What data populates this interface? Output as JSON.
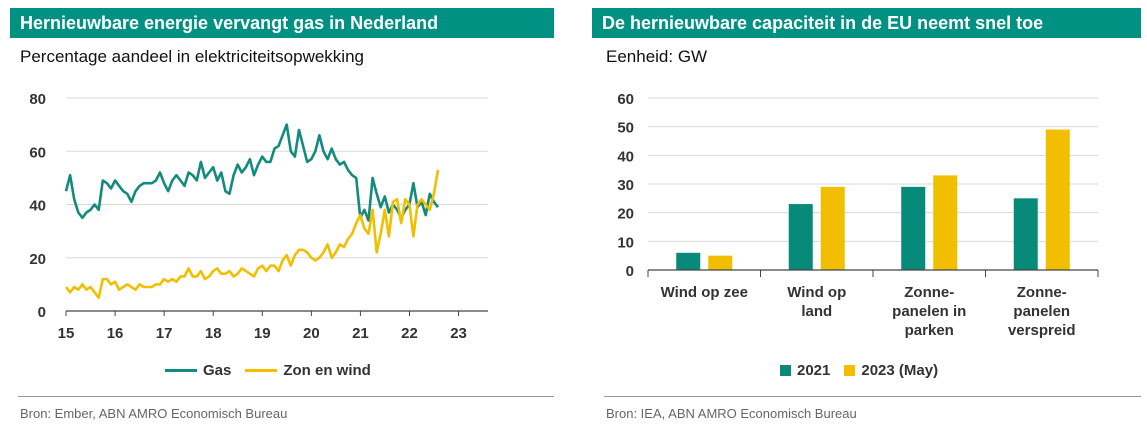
{
  "colors": {
    "header_bg": "#009182",
    "gas": "#138b7c",
    "renew": "#f2bf00",
    "bar2021": "#078a7a",
    "bar2023": "#f2bf00"
  },
  "chart_data": [
    {
      "type": "line",
      "title": "Hernieuwbare energie vervangt gas in Nederland",
      "subtitle": "Percentage aandeel in elektriciteitsopwekking",
      "source": "Bron: Ember, ABN AMRO Economisch Bureau",
      "x_range": [
        15,
        23.6
      ],
      "x_ticks": [
        "15",
        "16",
        "17",
        "18",
        "19",
        "20",
        "21",
        "22",
        "23"
      ],
      "ylim": [
        0,
        80
      ],
      "y_ticks": [
        "0",
        "20",
        "40",
        "60",
        "80"
      ],
      "grid": true,
      "legend_position": "bottom",
      "series": [
        {
          "name": "Gas",
          "x_start": 15,
          "step": 0.0833,
          "values": [
            45,
            51,
            42,
            37,
            35,
            37,
            38,
            40,
            38,
            49,
            48,
            46,
            49,
            47,
            45,
            44,
            41,
            45,
            47,
            48,
            48,
            48,
            49,
            52,
            48,
            45,
            49,
            51,
            49,
            47,
            52,
            51,
            49,
            56,
            50,
            52,
            54,
            49,
            52,
            45,
            44,
            51,
            55,
            52,
            54,
            57,
            51,
            55,
            58,
            56,
            56,
            61,
            62,
            66,
            70,
            60,
            58,
            68,
            62,
            56,
            57,
            60,
            66,
            60,
            57,
            61,
            57,
            55,
            56,
            53,
            51,
            50,
            35,
            38,
            34,
            50,
            44,
            39,
            43,
            37,
            40,
            38,
            35,
            38,
            40,
            48,
            39,
            41,
            36,
            44,
            41,
            39
          ]
        },
        {
          "name": "Zon en wind",
          "x_start": 15,
          "step": 0.0833,
          "values": [
            9,
            7,
            9,
            8,
            10,
            8,
            9,
            7,
            5,
            12,
            12,
            10,
            11,
            8,
            9,
            10,
            9,
            8,
            10,
            9,
            9,
            9,
            10,
            10,
            12,
            11,
            12,
            11,
            13,
            13,
            16,
            13,
            13,
            15,
            12,
            13,
            15,
            16,
            14,
            14,
            15,
            13,
            14,
            16,
            15,
            14,
            13,
            16,
            17,
            15,
            17,
            17,
            15,
            19,
            21,
            17,
            21,
            23,
            23,
            22,
            20,
            19,
            20,
            22,
            25,
            20,
            22,
            25,
            24,
            27,
            29,
            33,
            36,
            31,
            29,
            38,
            22,
            29,
            38,
            28,
            41,
            42,
            33,
            42,
            40,
            28,
            40,
            42,
            40,
            38,
            44,
            53
          ]
        }
      ]
    },
    {
      "type": "bar",
      "title": "De hernieuwbare capaciteit in de EU neemt snel toe",
      "subtitle": "Eenheid: GW",
      "source": "Bron: IEA, ABN AMRO Economisch Bureau",
      "categories": [
        [
          "Wind op zee"
        ],
        [
          "Wind op",
          "land"
        ],
        [
          "Zonne-",
          "panelen in",
          "parken"
        ],
        [
          "Zonne-",
          "panelen",
          "verspreid"
        ]
      ],
      "ylim": [
        0,
        60
      ],
      "y_ticks": [
        "0",
        "10",
        "20",
        "30",
        "40",
        "50",
        "60"
      ],
      "grid": true,
      "legend_position": "bottom",
      "series": [
        {
          "name": "2021",
          "values": [
            6,
            23,
            29,
            25
          ]
        },
        {
          "name": "2023 (May)",
          "values": [
            5,
            29,
            33,
            49
          ]
        }
      ]
    }
  ]
}
